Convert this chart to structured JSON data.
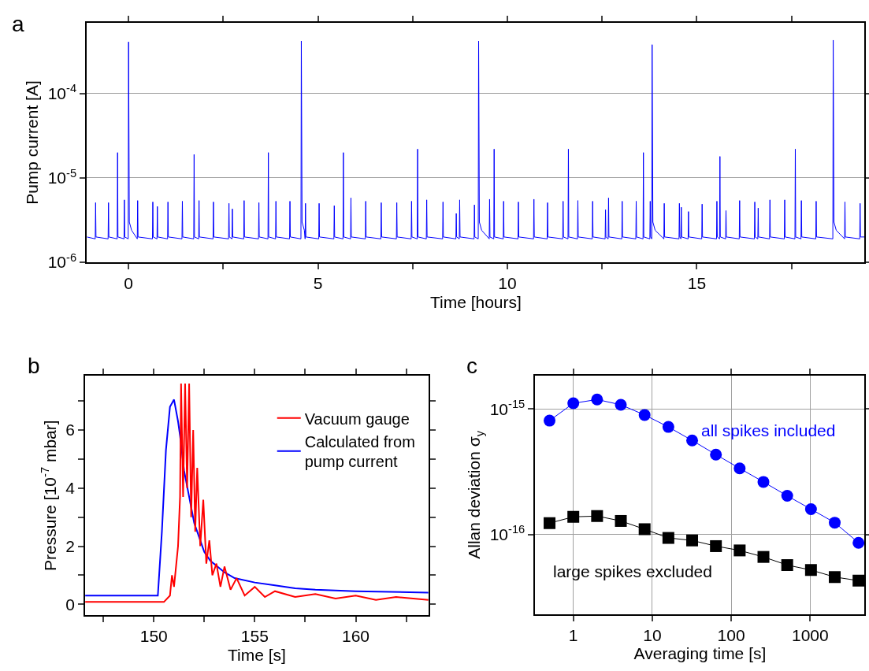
{
  "chart_data": [
    {
      "type": "line",
      "title": "a",
      "xlabel": "Time [hours]",
      "ylabel": "Pump current [A]",
      "log": "y",
      "grid": "y",
      "xlim": [
        -1.1,
        19.43
      ],
      "ylim": [
        1e-06,
        0.00069
      ],
      "xticks": [
        0,
        {
          "value": 2.5,
          "label": null
        },
        5,
        {
          "value": 7.5,
          "label": null
        },
        10,
        {
          "value": 12.5,
          "label": null
        },
        15,
        {
          "value": 17.5,
          "label": null
        }
      ],
      "yticks": [
        {
          "value": 1e-06,
          "label": "10$^{-6}$"
        },
        {
          "value": 1e-05,
          "label": "10$^{-5}$"
        },
        {
          "value": 0.0001,
          "label": "10$^{-4}$"
        }
      ],
      "series": [
        {
          "color": "#0000ff",
          "x": [
            -1.1,
            -0.88,
            -0.87,
            -0.86,
            -0.54,
            -0.53,
            -0.52,
            -0.3,
            -0.29,
            -0.28,
            -0.12,
            -0.11,
            -0.1,
            -0.01,
            0,
            0.02,
            0.08,
            0.23,
            0.24,
            0.25,
            0.63,
            0.64,
            0.65,
            0.75,
            0.76,
            0.77,
            1.03,
            1.04,
            1.05,
            1.41,
            1.42,
            1.43,
            1.72,
            1.73,
            1.74,
            1.85,
            1.86,
            1.87,
            2.23,
            2.24,
            2.25,
            2.64,
            2.65,
            2.66,
            2.73,
            2.74,
            2.75,
            3.04,
            3.05,
            3.06,
            3.43,
            3.44,
            3.45,
            3.68,
            3.69,
            3.7,
            3.88,
            3.89,
            3.9,
            4.25,
            4.26,
            4.27,
            4.55,
            4.56,
            4.58,
            4.64,
            4.66,
            4.67,
            4.68,
            5.02,
            5.03,
            5.04,
            5.42,
            5.43,
            5.44,
            5.66,
            5.67,
            5.68,
            5.86,
            5.87,
            5.88,
            6.25,
            6.26,
            6.27,
            6.66,
            6.67,
            6.68,
            7.07,
            7.08,
            7.09,
            7.46,
            7.47,
            7.48,
            7.62,
            7.63,
            7.64,
            7.86,
            7.87,
            7.88,
            8.29,
            8.3,
            8.31,
            8.64,
            8.65,
            8.66,
            8.73,
            8.74,
            8.75,
            9.12,
            9.13,
            9.14,
            9.23,
            9.24,
            9.26,
            9.32,
            9.52,
            9.53,
            9.54,
            9.64,
            9.65,
            9.66,
            9.89,
            9.9,
            9.91,
            10.28,
            10.29,
            10.3,
            10.69,
            10.7,
            10.71,
            11.05,
            11.06,
            11.07,
            11.46,
            11.47,
            11.48,
            11.6,
            11.61,
            11.62,
            11.85,
            11.86,
            11.87,
            12.24,
            12.25,
            12.26,
            12.58,
            12.59,
            12.6,
            12.66,
            12.67,
            12.68,
            13.02,
            13.03,
            13.04,
            13.39,
            13.4,
            13.41,
            13.58,
            13.59,
            13.6,
            13.76,
            13.77,
            13.78,
            13.81,
            13.82,
            13.84,
            13.9,
            14.13,
            14.14,
            14.15,
            14.53,
            14.54,
            14.55,
            14.58,
            14.59,
            14.6,
            14.77,
            14.78,
            14.79,
            15.13,
            15.14,
            15.15,
            15.52,
            15.53,
            15.54,
            15.6,
            15.61,
            15.62,
            15.76,
            15.77,
            15.78,
            16.12,
            16.13,
            16.14,
            16.52,
            16.53,
            16.54,
            16.61,
            16.62,
            16.63,
            16.92,
            16.93,
            16.94,
            17.31,
            17.32,
            17.33,
            17.59,
            17.6,
            17.61,
            17.75,
            17.76,
            17.77,
            18.14,
            18.15,
            18.16,
            18.59,
            18.6,
            18.62,
            18.68,
            18.9,
            18.91,
            18.92,
            19.3,
            19.31,
            19.32,
            19.43
          ],
          "values": [
            2e-06,
            1.9e-06,
            5.1e-06,
            2e-06,
            1.9e-06,
            5.1e-06,
            2e-06,
            1.9e-06,
            2e-05,
            2e-06,
            1.9e-06,
            5.5e-06,
            2e-06,
            1.9e-06,
            0.00041,
            3e-06,
            2.4e-06,
            1.9e-06,
            5.4e-06,
            2e-06,
            1.9e-06,
            5.2e-06,
            2e-06,
            1.9e-06,
            4.6e-06,
            2e-06,
            1.9e-06,
            5.2e-06,
            2e-06,
            1.9e-06,
            5.3e-06,
            2e-06,
            1.9e-06,
            1.9e-05,
            2e-06,
            1.9e-06,
            5.4e-06,
            2e-06,
            1.9e-06,
            5.2e-06,
            2e-06,
            1.9e-06,
            5e-06,
            2e-06,
            1.9e-06,
            4.3e-06,
            2e-06,
            1.9e-06,
            5.4e-06,
            2e-06,
            1.9e-06,
            5.1e-06,
            2e-06,
            1.9e-06,
            2e-05,
            2e-06,
            1.9e-06,
            5.3e-06,
            2e-06,
            1.9e-06,
            5.3e-06,
            2e-06,
            1.9e-06,
            0.00042,
            3e-06,
            2.4e-06,
            1.9e-06,
            5e-06,
            2e-06,
            1.9e-06,
            5e-06,
            2e-06,
            1.9e-06,
            4.7e-06,
            2e-06,
            1.9e-06,
            2e-05,
            2e-06,
            1.9e-06,
            5.8e-06,
            2e-06,
            1.9e-06,
            5.3e-06,
            2e-06,
            1.9e-06,
            5.1e-06,
            2e-06,
            1.9e-06,
            5.1e-06,
            2e-06,
            1.9e-06,
            5.3e-06,
            2e-06,
            1.9e-06,
            2.2e-05,
            2e-06,
            1.9e-06,
            5.5e-06,
            2e-06,
            1.9e-06,
            5.2e-06,
            2e-06,
            1.9e-06,
            3.8e-06,
            2e-06,
            1.9e-06,
            5.5e-06,
            2e-06,
            1.9e-06,
            4.8e-06,
            2e-06,
            1.9e-06,
            0.00042,
            3e-06,
            2.4e-06,
            1.9e-06,
            5.6e-06,
            2e-06,
            1.9e-06,
            2.2e-05,
            2e-06,
            1.9e-06,
            5.3e-06,
            2e-06,
            1.9e-06,
            5.2e-06,
            2e-06,
            1.9e-06,
            5.6e-06,
            2e-06,
            1.9e-06,
            5.1e-06,
            2e-06,
            1.9e-06,
            5.3e-06,
            2e-06,
            1.9e-06,
            2.2e-05,
            2e-06,
            1.9e-06,
            5.4e-06,
            2e-06,
            1.9e-06,
            5.3e-06,
            2e-06,
            1.9e-06,
            4.2e-06,
            2e-06,
            1.9e-06,
            5.8e-06,
            2e-06,
            1.9e-06,
            5.3e-06,
            2e-06,
            1.9e-06,
            5.3e-06,
            2e-06,
            1.9e-06,
            2e-05,
            2e-06,
            1.9e-06,
            5.3e-06,
            2e-06,
            1.9e-06,
            0.00038,
            3e-06,
            2.4e-06,
            1.9e-06,
            5e-06,
            2e-06,
            1.9e-06,
            5e-06,
            2e-06,
            1.9e-06,
            4.5e-06,
            2e-06,
            1.9e-06,
            4e-06,
            2e-06,
            1.9e-06,
            4.9e-06,
            2e-06,
            1.9e-06,
            5.3e-06,
            2e-06,
            1.9e-06,
            1.8e-05,
            2e-06,
            1.9e-06,
            4.1e-06,
            2e-06,
            1.9e-06,
            5.4e-06,
            2e-06,
            1.9e-06,
            5.2e-06,
            2e-06,
            1.9e-06,
            4.4e-06,
            2e-06,
            1.9e-06,
            5.5e-06,
            2e-06,
            1.9e-06,
            5.5e-06,
            2e-06,
            1.9e-06,
            2.2e-05,
            2e-06,
            1.9e-06,
            5.4e-06,
            2e-06,
            1.9e-06,
            5.3e-06,
            2e-06,
            1.9e-06,
            0.00043,
            3e-06,
            2.4e-06,
            1.9e-06,
            5.2e-06,
            2e-06,
            1.9e-06,
            5e-06,
            2e-06,
            2e-06
          ]
        }
      ]
    },
    {
      "type": "line",
      "title": "b",
      "xlabel": "Time [s]",
      "ylabel": "Pressure [10$^{-7}$ mbar]",
      "legend": "top right",
      "xlim": [
        146.6,
        163.6
      ],
      "ylim": [
        -0.38,
        7.87
      ],
      "xticks": [
        {
          "value": 147.5,
          "label": null
        },
        150,
        {
          "value": 152.5,
          "label": null
        },
        155,
        {
          "value": 157.5,
          "label": null
        },
        160,
        {
          "value": 162.5,
          "label": null
        }
      ],
      "yticks": [
        0,
        {
          "value": 1,
          "label": null
        },
        2,
        {
          "value": 3,
          "label": null
        },
        4,
        {
          "value": 5,
          "label": null
        },
        6,
        {
          "value": 7,
          "label": null
        }
      ],
      "series": [
        {
          "name": "Vacuum gauge",
          "color": "#ff0000",
          "x": [
            146.6,
            150.5,
            150.8,
            150.9,
            151.0,
            151.1,
            151.2,
            151.3,
            151.35,
            151.45,
            151.55,
            151.65,
            151.75,
            151.85,
            151.95,
            152.05,
            152.15,
            152.3,
            152.45,
            152.6,
            152.75,
            152.9,
            153.1,
            153.3,
            153.5,
            153.8,
            154.1,
            154.5,
            155,
            155.5,
            156,
            157,
            158,
            159,
            160,
            161,
            162,
            163.6
          ],
          "values": [
            0.08,
            0.08,
            0.3,
            1.0,
            0.6,
            1.3,
            2.0,
            3.7,
            7.6,
            3.7,
            7.6,
            4.0,
            7.6,
            3.0,
            6.0,
            2.5,
            4.7,
            2.0,
            3.6,
            1.4,
            2.2,
            1.0,
            1.4,
            0.6,
            1.3,
            0.5,
            0.9,
            0.3,
            0.6,
            0.25,
            0.45,
            0.25,
            0.35,
            0.2,
            0.3,
            0.15,
            0.25,
            0.15
          ]
        },
        {
          "name": "Calculated from\npump current",
          "color": "#0000ff",
          "x": [
            146.6,
            150.2,
            150.4,
            150.6,
            150.8,
            151.0,
            151.2,
            151.3,
            151.5,
            152.0,
            152.5,
            152.8,
            153.5,
            154,
            155,
            156,
            157,
            158,
            160,
            163.6
          ],
          "values": [
            0.3,
            0.3,
            2.5,
            5.3,
            6.8,
            7.05,
            6.3,
            5.8,
            4.6,
            2.8,
            1.8,
            1.5,
            1.1,
            0.9,
            0.75,
            0.65,
            0.55,
            0.5,
            0.45,
            0.4
          ]
        }
      ]
    },
    {
      "type": "line",
      "title": "c",
      "xlabel": "Averaging time [s]",
      "ylabel": "Allan deviation σ$_{y}$",
      "log": "xy",
      "grid": true,
      "xlim": [
        0.33,
        4900
      ],
      "ylim": [
        2.32e-17,
        1.84e-15
      ],
      "xticks": [
        1,
        10,
        100,
        1000
      ],
      "yticks": [
        {
          "value": 1e-16,
          "label": "10$^{-16}$"
        },
        {
          "value": 1e-15,
          "label": "10$^{-15}$"
        }
      ],
      "x": [
        0.5,
        1,
        2,
        4,
        8,
        16,
        32,
        64,
        128,
        256,
        512,
        1024,
        2048,
        4096
      ],
      "series": [
        {
          "name": "all spikes included",
          "color": "#0000ff",
          "marker": "circle",
          "values": [
            8.07e-16,
            1.11e-15,
            1.19e-15,
            1.08e-15,
            8.96e-16,
            7.19e-16,
            5.61e-16,
            4.33e-16,
            3.36e-16,
            2.62e-16,
            2.03e-16,
            1.59e-16,
            1.24e-16,
            8.57e-17
          ]
        },
        {
          "name": "large spikes excluded",
          "color": "#000000",
          "marker": "square",
          "values": [
            1.23e-16,
            1.38e-16,
            1.4e-16,
            1.28e-16,
            1.1e-16,
            9.37e-17,
            8.95e-17,
            8.06e-17,
            7.45e-17,
            6.61e-17,
            5.69e-17,
            5.2e-17,
            4.57e-17,
            4.28e-17
          ]
        }
      ]
    }
  ]
}
